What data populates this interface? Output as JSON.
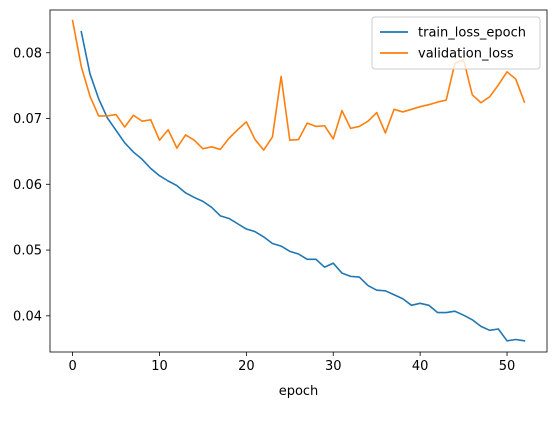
{
  "chart_data": {
    "type": "line",
    "title": "",
    "xlabel": "epoch",
    "ylabel": "",
    "xlim": [
      -2.6,
      54.6
    ],
    "ylim": [
      0.0345,
      0.0865
    ],
    "x_ticks": [
      0,
      10,
      20,
      30,
      40,
      50
    ],
    "x_tick_labels": [
      "0",
      "10",
      "20",
      "30",
      "40",
      "50"
    ],
    "y_ticks": [
      0.04,
      0.05,
      0.06,
      0.07,
      0.08
    ],
    "y_tick_labels": [
      "0.04",
      "0.05",
      "0.06",
      "0.07",
      "0.08"
    ],
    "grid": false,
    "legend_position": "upper-right",
    "series": [
      {
        "name": "train_loss_epoch",
        "color": "#1f77b4",
        "x": [
          1,
          2,
          3,
          4,
          5,
          6,
          7,
          8,
          9,
          10,
          11,
          12,
          13,
          14,
          15,
          16,
          17,
          18,
          19,
          20,
          21,
          22,
          23,
          24,
          25,
          26,
          27,
          28,
          29,
          30,
          31,
          32,
          33,
          34,
          35,
          36,
          37,
          38,
          39,
          40,
          41,
          42,
          43,
          44,
          45,
          46,
          47,
          48,
          49,
          50,
          51,
          52
        ],
        "values": [
          0.0832,
          0.0768,
          0.073,
          0.0701,
          0.0682,
          0.0663,
          0.0649,
          0.0638,
          0.0624,
          0.0613,
          0.0605,
          0.0598,
          0.0587,
          0.058,
          0.0574,
          0.0565,
          0.0552,
          0.0548,
          0.054,
          0.0532,
          0.0528,
          0.052,
          0.051,
          0.0506,
          0.0498,
          0.0494,
          0.0486,
          0.0486,
          0.0474,
          0.048,
          0.0465,
          0.046,
          0.0459,
          0.0446,
          0.0439,
          0.0438,
          0.0432,
          0.0426,
          0.0416,
          0.0419,
          0.0416,
          0.0405,
          0.0405,
          0.0407,
          0.0401,
          0.0394,
          0.0384,
          0.0378,
          0.038,
          0.0362,
          0.0364,
          0.0362
        ]
      },
      {
        "name": "validation_loss",
        "color": "#ff7f0e",
        "x": [
          0,
          1,
          2,
          3,
          4,
          5,
          6,
          7,
          8,
          9,
          10,
          11,
          12,
          13,
          14,
          15,
          16,
          17,
          18,
          19,
          20,
          21,
          22,
          23,
          24,
          25,
          26,
          27,
          28,
          29,
          30,
          31,
          32,
          33,
          34,
          35,
          36,
          37,
          38,
          39,
          40,
          41,
          42,
          43,
          44,
          45,
          46,
          47,
          48,
          49,
          50,
          51,
          52
        ],
        "values": [
          0.0849,
          0.0779,
          0.0734,
          0.0704,
          0.0704,
          0.0706,
          0.0687,
          0.0705,
          0.0696,
          0.0698,
          0.0667,
          0.0683,
          0.0655,
          0.0675,
          0.0667,
          0.0654,
          0.0657,
          0.0653,
          0.067,
          0.0683,
          0.0695,
          0.0668,
          0.0652,
          0.0672,
          0.0764,
          0.0667,
          0.0668,
          0.0693,
          0.0688,
          0.0689,
          0.0669,
          0.0712,
          0.0685,
          0.0688,
          0.0696,
          0.0709,
          0.0678,
          0.0714,
          0.071,
          0.0714,
          0.0718,
          0.0721,
          0.0725,
          0.0728,
          0.0784,
          0.0789,
          0.0736,
          0.0724,
          0.0733,
          0.0751,
          0.0771,
          0.076,
          0.0725
        ]
      }
    ]
  }
}
